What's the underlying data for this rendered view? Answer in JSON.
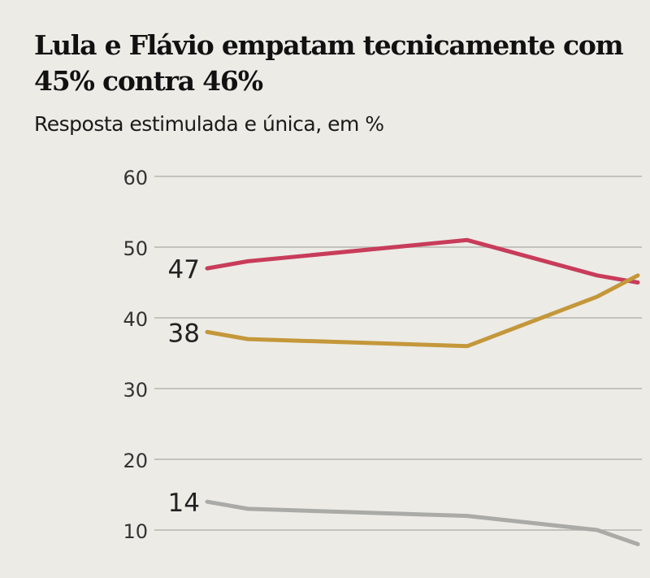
{
  "chart_data": {
    "type": "line",
    "title": "Lula e Flávio empatam tecnicamente com 45% contra 46%",
    "subtitle": "Resposta estimulada e única, em %",
    "ylim": [
      0,
      60
    ],
    "yticks": [
      60,
      50,
      40,
      30,
      20,
      10
    ],
    "grid": true,
    "x": [
      1,
      2,
      3,
      4,
      5
    ],
    "series": [
      {
        "values": [
          47,
          48,
          51,
          46,
          45
        ],
        "color": "#c83c5a",
        "start_label": "47"
      },
      {
        "values": [
          38,
          37,
          36,
          43,
          46
        ],
        "color": "#c4973a",
        "start_label": "38"
      },
      {
        "values": [
          14,
          13,
          12,
          10,
          8
        ],
        "color": "#aaaaa6",
        "start_label": "14"
      }
    ]
  }
}
